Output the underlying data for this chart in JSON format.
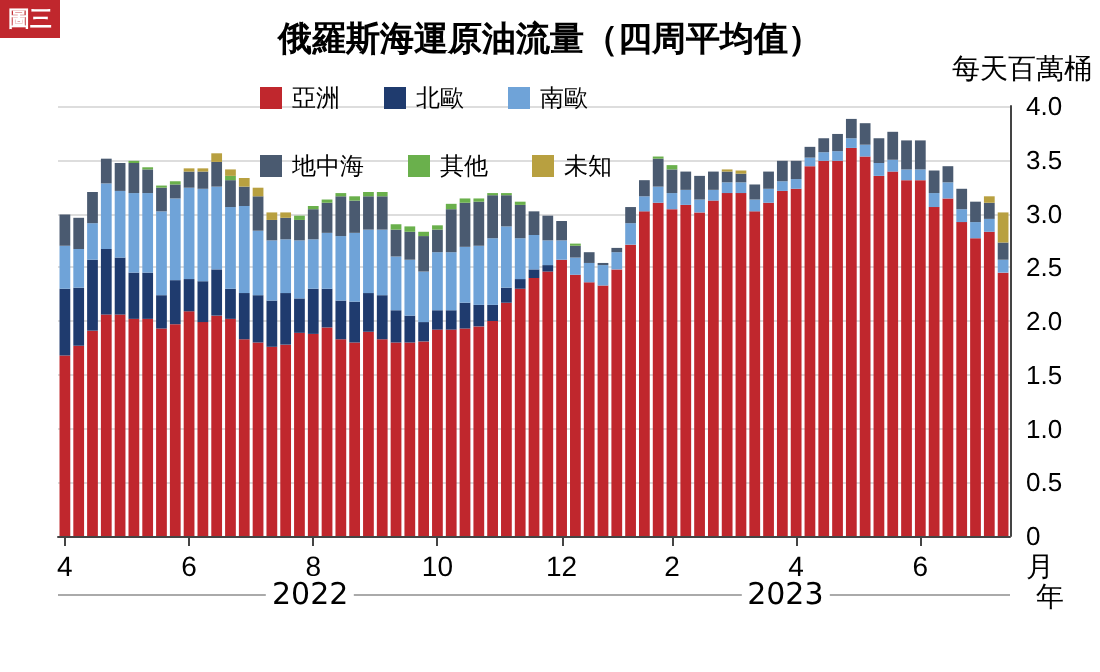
{
  "chart_data": {
    "type": "bar",
    "title": "俄羅斯海運原油流量（四周平均值）",
    "ylabel": "每天百萬桶",
    "xlabel": "月",
    "annotations": [
      "圖三",
      "年",
      "2022",
      "2023"
    ],
    "categories": [
      "4",
      null,
      null,
      null,
      null,
      null,
      null,
      null,
      null,
      "6",
      null,
      null,
      null,
      null,
      null,
      null,
      null,
      null,
      "8",
      null,
      null,
      null,
      null,
      null,
      null,
      null,
      null,
      "10",
      null,
      null,
      null,
      null,
      null,
      null,
      null,
      null,
      "12",
      null,
      null,
      null,
      null,
      null,
      null,
      null,
      "2",
      null,
      null,
      null,
      null,
      null,
      null,
      null,
      null,
      "4",
      null,
      null,
      null,
      null,
      null,
      null,
      null,
      null,
      "6",
      null,
      null,
      null,
      null,
      null,
      null
    ],
    "stacked": true,
    "legend": "top left",
    "grid": "y",
    "ylim": [
      0,
      4
    ],
    "yticks": [
      0,
      {
        "value": 0.5,
        "label": "0.5"
      },
      {
        "value": 1,
        "label": "1.0"
      },
      {
        "value": 1.5,
        "label": "1.5"
      },
      {
        "value": 2,
        "label": "2.0"
      },
      {
        "value": 2.5,
        "label": "2.5"
      },
      {
        "value": 3,
        "label": "3.0"
      },
      {
        "value": 3.5,
        "label": "3.5"
      },
      {
        "value": 4,
        "label": "4.0"
      }
    ],
    "series": [
      {
        "name": "亞洲",
        "color": "#c0272d",
        "values": [
          1.68,
          1.77,
          1.91,
          2.06,
          2.06,
          2.02,
          2.02,
          1.93,
          1.97,
          2.09,
          1.99,
          2.05,
          2.02,
          1.83,
          1.8,
          1.76,
          1.78,
          1.89,
          1.88,
          1.94,
          1.83,
          1.8,
          1.9,
          1.83,
          1.8,
          1.8,
          1.81,
          1.92,
          1.92,
          1.93,
          1.95,
          2.0,
          2.17,
          2.3,
          2.4,
          2.46,
          2.57,
          2.43,
          2.36,
          2.33,
          2.48,
          2.71,
          3.02,
          3.1,
          3.04,
          3.08,
          3.01,
          3.12,
          3.19,
          3.19,
          3.02,
          3.1,
          3.21,
          3.23,
          3.44,
          3.49,
          3.49,
          3.61,
          3.53,
          3.35,
          3.39,
          3.31,
          3.31,
          3.06,
          3.14,
          2.92,
          2.77,
          2.83,
          2.45
        ]
      },
      {
        "name": "北歐",
        "color": "#1f3b6e",
        "values": [
          0.62,
          0.54,
          0.66,
          0.61,
          0.53,
          0.43,
          0.43,
          0.31,
          0.41,
          0.3,
          0.38,
          0.43,
          0.28,
          0.43,
          0.44,
          0.43,
          0.48,
          0.32,
          0.42,
          0.36,
          0.36,
          0.38,
          0.36,
          0.41,
          0.3,
          0.25,
          0.18,
          0.18,
          0.18,
          0.24,
          0.2,
          0.15,
          0.14,
          0.09,
          0.08,
          0.06,
          0,
          0,
          0,
          0,
          0,
          0,
          0,
          0,
          0,
          0,
          0,
          0,
          0,
          0,
          0,
          0,
          0,
          0,
          0,
          0,
          0,
          0,
          0,
          0,
          0,
          0,
          0,
          0,
          0,
          0,
          0,
          0,
          0
        ]
      },
      {
        "name": "南歐",
        "color": "#6fa3d8",
        "values": [
          0.4,
          0.36,
          0.34,
          0.61,
          0.62,
          0.74,
          0.74,
          0.78,
          0.76,
          0.85,
          0.86,
          0.77,
          0.76,
          0.81,
          0.6,
          0.56,
          0.5,
          0.54,
          0.46,
          0.52,
          0.6,
          0.64,
          0.59,
          0.61,
          0.5,
          0.52,
          0.47,
          0.54,
          0.54,
          0.52,
          0.55,
          0.62,
          0.57,
          0.38,
          0.32,
          0.23,
          0.18,
          0.16,
          0.18,
          0.19,
          0.16,
          0.2,
          0.14,
          0.15,
          0.15,
          0.14,
          0.12,
          0.1,
          0.1,
          0.1,
          0.11,
          0.13,
          0.09,
          0.09,
          0.08,
          0.08,
          0.09,
          0.09,
          0.11,
          0.12,
          0.11,
          0.1,
          0.1,
          0.13,
          0.15,
          0.12,
          0.15,
          0.12,
          0.12
        ]
      },
      {
        "name": "地中海",
        "color": "#4a5a70",
        "values": [
          0.29,
          0.29,
          0.29,
          0.23,
          0.26,
          0.28,
          0.22,
          0.22,
          0.13,
          0.15,
          0.16,
          0.23,
          0.25,
          0.18,
          0.32,
          0.19,
          0.2,
          0.19,
          0.28,
          0.28,
          0.37,
          0.3,
          0.31,
          0.31,
          0.25,
          0.26,
          0.33,
          0.21,
          0.4,
          0.41,
          0.41,
          0.4,
          0.29,
          0.31,
          0.22,
          0.23,
          0.18,
          0.11,
          0.1,
          0.02,
          0.04,
          0.15,
          0.15,
          0.26,
          0.22,
          0.17,
          0.22,
          0.17,
          0.1,
          0.08,
          0.14,
          0.16,
          0.19,
          0.17,
          0.1,
          0.13,
          0.16,
          0.18,
          0.2,
          0.23,
          0.26,
          0.27,
          0.27,
          0.21,
          0.15,
          0.19,
          0.19,
          0.15,
          0.16
        ]
      },
      {
        "name": "其他",
        "color": "#6ab04c",
        "values": [
          0,
          0,
          0,
          0,
          0,
          0.02,
          0.02,
          0.02,
          0.03,
          0,
          0,
          0,
          0.04,
          0,
          0,
          0,
          0,
          0.04,
          0.03,
          0.03,
          0.03,
          0.04,
          0.04,
          0.04,
          0.05,
          0.05,
          0.04,
          0.04,
          0.05,
          0.04,
          0.03,
          0.02,
          0.02,
          0.03,
          0,
          0,
          0,
          0.02,
          0,
          0,
          0,
          0,
          0,
          0.02,
          0.04,
          0,
          0,
          0,
          0,
          0,
          0,
          0,
          0,
          0,
          0,
          0,
          0,
          0,
          0,
          0,
          0,
          0,
          0,
          0,
          0,
          0,
          0,
          0,
          0
        ]
      },
      {
        "name": "未知",
        "color": "#b8a040",
        "values": [
          0,
          0,
          0,
          0,
          0,
          0,
          0,
          0,
          0,
          0.03,
          0.03,
          0.08,
          0.06,
          0.08,
          0.08,
          0.07,
          0.05,
          0,
          0,
          0,
          0,
          0,
          0,
          0,
          0,
          0,
          0,
          0,
          0,
          0,
          0,
          0,
          0,
          0,
          0,
          0,
          0,
          0,
          0,
          0,
          0,
          0,
          0,
          0,
          0,
          0,
          0,
          0,
          0.02,
          0.03,
          0,
          0,
          0,
          0,
          0,
          0,
          0,
          0,
          0,
          0,
          0,
          0,
          0,
          0,
          0,
          0,
          0,
          0.06,
          0.28
        ]
      }
    ]
  }
}
